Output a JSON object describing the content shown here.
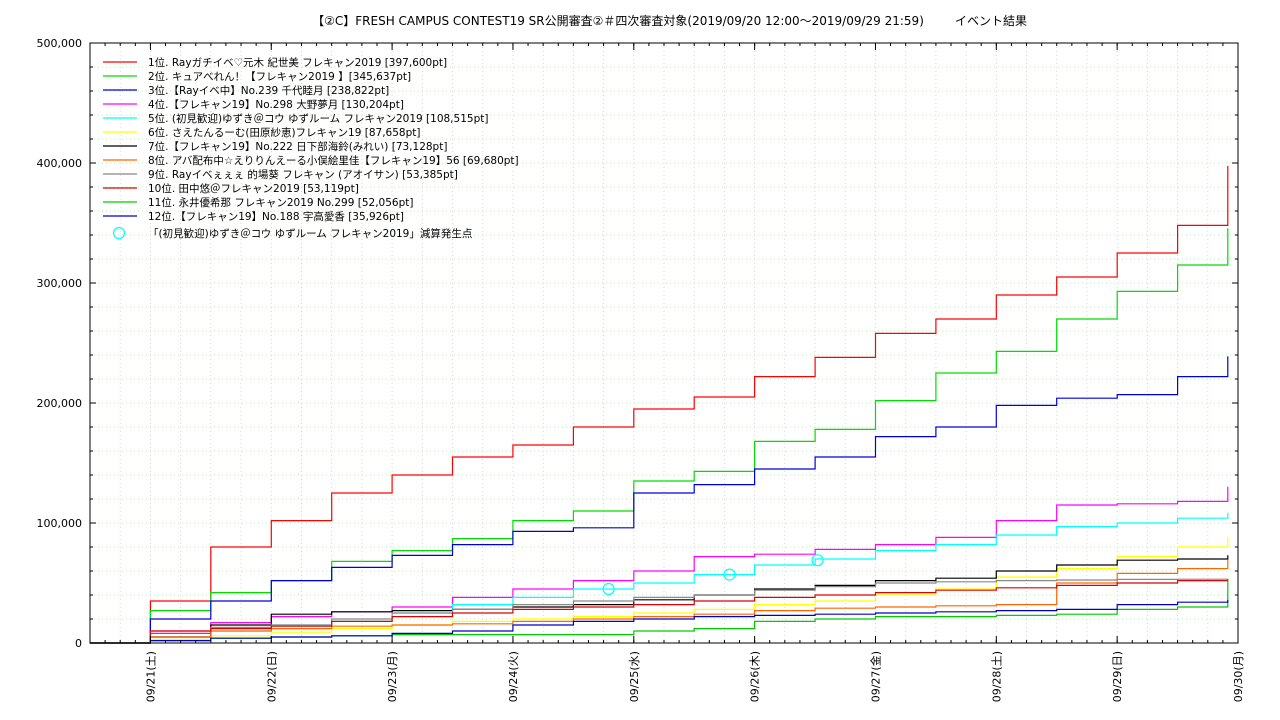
{
  "chart_data": {
    "type": "line",
    "title": "【②C】FRESH CAMPUS CONTEST19 SR公開審査②＃四次審査対象(2019/09/20 12:00〜2019/09/29 21:59)",
    "title_suffix": "イベント結果",
    "xlabel": "",
    "ylabel": "",
    "x_range": [
      "2019-09-20 12:00",
      "2019-09-30 00:00"
    ],
    "ylim": [
      0,
      500000
    ],
    "y_ticks": [
      0,
      100000,
      200000,
      300000,
      400000,
      500000
    ],
    "y_tick_labels": [
      "0",
      "100,000",
      "200,000",
      "300,000",
      "400,000",
      "500,000"
    ],
    "x_ticks": [
      "2019-09-21",
      "2019-09-22",
      "2019-09-23",
      "2019-09-24",
      "2019-09-25",
      "2019-09-26",
      "2019-09-27",
      "2019-09-28",
      "2019-09-29",
      "2019-09-30"
    ],
    "x_tick_labels": [
      "09/21(土)",
      "09/22(日)",
      "09/23(月)",
      "09/24(火)",
      "09/25(水)",
      "09/26(木)",
      "09/27(金)",
      "09/28(土)",
      "09/29(日)",
      "09/30(月)"
    ],
    "grid": true,
    "legend_position": "top-left",
    "series": [
      {
        "name": "1位. Rayガチイベ♡元木 紀世美 フレキャン2019 [397,600pt]",
        "color": "#ff0000",
        "x": [
          "2019-09-20 12:00",
          "2019-09-21 00:00",
          "2019-09-21 12:00",
          "2019-09-22 00:00",
          "2019-09-22 12:00",
          "2019-09-23 00:00",
          "2019-09-23 12:00",
          "2019-09-24 00:00",
          "2019-09-24 12:00",
          "2019-09-25 00:00",
          "2019-09-25 12:00",
          "2019-09-26 00:00",
          "2019-09-26 12:00",
          "2019-09-27 00:00",
          "2019-09-27 12:00",
          "2019-09-28 00:00",
          "2019-09-28 12:00",
          "2019-09-29 00:00",
          "2019-09-29 12:00",
          "2019-09-29 21:59"
        ],
        "y": [
          0,
          35000,
          80000,
          102000,
          125000,
          140000,
          155000,
          165000,
          180000,
          195000,
          205000,
          222000,
          238000,
          258000,
          270000,
          290000,
          305000,
          325000,
          348000,
          397600
        ]
      },
      {
        "name": "2位. キュアべれん！【フレキャン2019 】[345,637pt]",
        "color": "#00dd00",
        "x": [
          "2019-09-20 12:00",
          "2019-09-21 00:00",
          "2019-09-21 12:00",
          "2019-09-22 00:00",
          "2019-09-22 12:00",
          "2019-09-23 00:00",
          "2019-09-23 12:00",
          "2019-09-24 00:00",
          "2019-09-24 12:00",
          "2019-09-25 00:00",
          "2019-09-25 12:00",
          "2019-09-26 00:00",
          "2019-09-26 12:00",
          "2019-09-27 00:00",
          "2019-09-27 12:00",
          "2019-09-28 00:00",
          "2019-09-28 12:00",
          "2019-09-29 00:00",
          "2019-09-29 12:00",
          "2019-09-29 21:59"
        ],
        "y": [
          0,
          27000,
          42000,
          52000,
          68000,
          77000,
          87000,
          102000,
          110000,
          135000,
          143000,
          168000,
          178000,
          202000,
          225000,
          243000,
          270000,
          293000,
          315000,
          345637
        ]
      },
      {
        "name": "3位.【Rayイベ中】No.239 千代睦月 [238,822pt]",
        "color": "#0000dd",
        "x": [
          "2019-09-20 12:00",
          "2019-09-21 00:00",
          "2019-09-21 12:00",
          "2019-09-22 00:00",
          "2019-09-22 12:00",
          "2019-09-23 00:00",
          "2019-09-23 12:00",
          "2019-09-24 00:00",
          "2019-09-24 12:00",
          "2019-09-25 00:00",
          "2019-09-25 12:00",
          "2019-09-26 00:00",
          "2019-09-26 12:00",
          "2019-09-27 00:00",
          "2019-09-27 12:00",
          "2019-09-28 00:00",
          "2019-09-28 12:00",
          "2019-09-29 00:00",
          "2019-09-29 12:00",
          "2019-09-29 21:59"
        ],
        "y": [
          0,
          20000,
          35000,
          52000,
          63000,
          73000,
          82000,
          93000,
          96000,
          125000,
          132000,
          145000,
          155000,
          172000,
          180000,
          198000,
          204000,
          207000,
          222000,
          238822
        ]
      },
      {
        "name": "4位.【フレキャン19】No.298 大野夢月 [130,204pt]",
        "color": "#ff00ff",
        "x": [
          "2019-09-20 12:00",
          "2019-09-21 00:00",
          "2019-09-21 12:00",
          "2019-09-22 00:00",
          "2019-09-22 12:00",
          "2019-09-23 00:00",
          "2019-09-23 12:00",
          "2019-09-24 00:00",
          "2019-09-24 12:00",
          "2019-09-25 00:00",
          "2019-09-25 12:00",
          "2019-09-26 00:00",
          "2019-09-26 12:00",
          "2019-09-27 00:00",
          "2019-09-27 12:00",
          "2019-09-28 00:00",
          "2019-09-28 12:00",
          "2019-09-29 00:00",
          "2019-09-29 12:00",
          "2019-09-29 21:59"
        ],
        "y": [
          0,
          8000,
          17000,
          22000,
          26000,
          30000,
          38000,
          45000,
          52000,
          60000,
          72000,
          74000,
          78000,
          82000,
          88000,
          102000,
          115000,
          116000,
          118000,
          130204
        ]
      },
      {
        "name": "5位. (初見歓迎)ゆずき＠コウ ゆずルーム フレキャン2019 [108,515pt]",
        "color": "#00ffff",
        "x": [
          "2019-09-20 12:00",
          "2019-09-21 00:00",
          "2019-09-21 12:00",
          "2019-09-22 00:00",
          "2019-09-22 12:00",
          "2019-09-23 00:00",
          "2019-09-23 12:00",
          "2019-09-24 00:00",
          "2019-09-24 12:00",
          "2019-09-25 00:00",
          "2019-09-25 12:00",
          "2019-09-26 00:00",
          "2019-09-26 12:00",
          "2019-09-27 00:00",
          "2019-09-27 12:00",
          "2019-09-28 00:00",
          "2019-09-28 12:00",
          "2019-09-29 00:00",
          "2019-09-29 12:00",
          "2019-09-29 21:59"
        ],
        "y": [
          0,
          5000,
          10000,
          15000,
          18000,
          25000,
          32000,
          38000,
          45000,
          50000,
          57000,
          65000,
          70000,
          77000,
          82000,
          90000,
          97000,
          100000,
          104000,
          108515
        ]
      },
      {
        "name": "6位. さえたんるーむ(田原紗恵)フレキャン19 [87,658pt]",
        "color": "#ffff00",
        "x": [
          "2019-09-20 12:00",
          "2019-09-21 00:00",
          "2019-09-21 12:00",
          "2019-09-22 00:00",
          "2019-09-22 12:00",
          "2019-09-23 00:00",
          "2019-09-23 12:00",
          "2019-09-24 00:00",
          "2019-09-24 12:00",
          "2019-09-25 00:00",
          "2019-09-25 12:00",
          "2019-09-26 00:00",
          "2019-09-26 12:00",
          "2019-09-27 00:00",
          "2019-09-27 12:00",
          "2019-09-28 00:00",
          "2019-09-28 12:00",
          "2019-09-29 00:00",
          "2019-09-29 12:00",
          "2019-09-29 21:59"
        ],
        "y": [
          0,
          3000,
          6000,
          9000,
          12000,
          15000,
          18000,
          20000,
          22000,
          25000,
          28000,
          32000,
          35000,
          40000,
          45000,
          55000,
          62000,
          72000,
          80000,
          87658
        ]
      },
      {
        "name": "7位.【フレキャン19】No.222 日下部海鈴(みれい) [73,128pt]",
        "color": "#000000",
        "x": [
          "2019-09-20 12:00",
          "2019-09-21 00:00",
          "2019-09-21 12:00",
          "2019-09-22 00:00",
          "2019-09-22 12:00",
          "2019-09-23 00:00",
          "2019-09-23 12:00",
          "2019-09-24 00:00",
          "2019-09-24 12:00",
          "2019-09-25 00:00",
          "2019-09-25 12:00",
          "2019-09-26 00:00",
          "2019-09-26 12:00",
          "2019-09-27 00:00",
          "2019-09-27 12:00",
          "2019-09-28 00:00",
          "2019-09-28 12:00",
          "2019-09-29 00:00",
          "2019-09-29 12:00",
          "2019-09-29 21:59"
        ],
        "y": [
          0,
          5000,
          15000,
          24000,
          26000,
          27000,
          28000,
          30000,
          32000,
          36000,
          40000,
          45000,
          48000,
          52000,
          54000,
          60000,
          65000,
          69000,
          70000,
          73128
        ]
      },
      {
        "name": "8位. アバ配布中☆えりりんえーる小俣絵里佳【フレキャン19】56 [69,680pt]",
        "color": "#ff6600",
        "x": [
          "2019-09-20 12:00",
          "2019-09-21 00:00",
          "2019-09-21 12:00",
          "2019-09-22 00:00",
          "2019-09-22 12:00",
          "2019-09-23 00:00",
          "2019-09-23 12:00",
          "2019-09-24 00:00",
          "2019-09-24 12:00",
          "2019-09-25 00:00",
          "2019-09-25 12:00",
          "2019-09-26 00:00",
          "2019-09-26 12:00",
          "2019-09-27 00:00",
          "2019-09-27 12:00",
          "2019-09-28 00:00",
          "2019-09-28 12:00",
          "2019-09-29 00:00",
          "2019-09-29 12:00",
          "2019-09-29 21:59"
        ],
        "y": [
          0,
          5000,
          10000,
          12000,
          14000,
          15000,
          16000,
          18000,
          20000,
          22000,
          24000,
          27000,
          29000,
          30000,
          31000,
          32000,
          50000,
          58000,
          62000,
          69680
        ]
      },
      {
        "name": "9位. Rayイベぇぇぇ 的場葵 フレキャン (アオイサン) [53,385pt]",
        "color": "#888888",
        "x": [
          "2019-09-20 12:00",
          "2019-09-21 00:00",
          "2019-09-21 12:00",
          "2019-09-22 00:00",
          "2019-09-22 12:00",
          "2019-09-23 00:00",
          "2019-09-23 12:00",
          "2019-09-24 00:00",
          "2019-09-24 12:00",
          "2019-09-25 00:00",
          "2019-09-25 12:00",
          "2019-09-26 00:00",
          "2019-09-26 12:00",
          "2019-09-27 00:00",
          "2019-09-27 12:00",
          "2019-09-28 00:00",
          "2019-09-28 12:00",
          "2019-09-29 00:00",
          "2019-09-29 12:00",
          "2019-09-29 21:59"
        ],
        "y": [
          0,
          10000,
          13000,
          15000,
          20000,
          25000,
          28000,
          32000,
          35000,
          38000,
          40000,
          44000,
          47000,
          50000,
          51000,
          52000,
          52500,
          53000,
          53200,
          53385
        ]
      },
      {
        "name": "10位. 田中悠＠フレキャン2019 [53,119pt]",
        "color": "#dd0000",
        "x": [
          "2019-09-20 12:00",
          "2019-09-21 00:00",
          "2019-09-21 12:00",
          "2019-09-22 00:00",
          "2019-09-22 12:00",
          "2019-09-23 00:00",
          "2019-09-23 12:00",
          "2019-09-24 00:00",
          "2019-09-24 12:00",
          "2019-09-25 00:00",
          "2019-09-25 12:00",
          "2019-09-26 00:00",
          "2019-09-26 12:00",
          "2019-09-27 00:00",
          "2019-09-27 12:00",
          "2019-09-28 00:00",
          "2019-09-28 12:00",
          "2019-09-29 00:00",
          "2019-09-29 12:00",
          "2019-09-29 21:59"
        ],
        "y": [
          0,
          10000,
          12000,
          14000,
          18000,
          22000,
          25000,
          28000,
          30000,
          32000,
          35000,
          38000,
          40000,
          42000,
          44000,
          46000,
          48000,
          50000,
          52000,
          53119
        ]
      },
      {
        "name": "11位. 永井優希那 フレキャン2019 No.299 [52,056pt]",
        "color": "#00cc00",
        "x": [
          "2019-09-20 12:00",
          "2019-09-21 00:00",
          "2019-09-21 12:00",
          "2019-09-22 00:00",
          "2019-09-22 12:00",
          "2019-09-23 00:00",
          "2019-09-23 12:00",
          "2019-09-24 00:00",
          "2019-09-24 12:00",
          "2019-09-25 00:00",
          "2019-09-25 12:00",
          "2019-09-26 00:00",
          "2019-09-26 12:00",
          "2019-09-27 00:00",
          "2019-09-27 12:00",
          "2019-09-28 00:00",
          "2019-09-28 12:00",
          "2019-09-29 00:00",
          "2019-09-29 12:00",
          "2019-09-29 21:59"
        ],
        "y": [
          0,
          2000,
          4000,
          5000,
          6000,
          7000,
          7000,
          7000,
          7000,
          10000,
          12000,
          18000,
          20000,
          22000,
          22000,
          23000,
          24000,
          28000,
          30000,
          52056
        ]
      },
      {
        "name": "12位.【フレキャン19】No.188 宇高愛香 [35,926pt]",
        "color": "#0000cc",
        "x": [
          "2019-09-20 12:00",
          "2019-09-21 00:00",
          "2019-09-21 12:00",
          "2019-09-22 00:00",
          "2019-09-22 12:00",
          "2019-09-23 00:00",
          "2019-09-23 12:00",
          "2019-09-24 00:00",
          "2019-09-24 12:00",
          "2019-09-25 00:00",
          "2019-09-25 12:00",
          "2019-09-26 00:00",
          "2019-09-26 12:00",
          "2019-09-27 00:00",
          "2019-09-27 12:00",
          "2019-09-28 00:00",
          "2019-09-28 12:00",
          "2019-09-29 00:00",
          "2019-09-29 12:00",
          "2019-09-29 21:59"
        ],
        "y": [
          0,
          2000,
          4000,
          5000,
          6000,
          8000,
          10000,
          15000,
          18000,
          20000,
          22000,
          23000,
          24000,
          25000,
          26000,
          27000,
          28000,
          32000,
          34000,
          35926
        ]
      }
    ],
    "markers": {
      "name": "「(初見歓迎)ゆずき＠コウ ゆずルーム フレキャン2019」減算発生点",
      "color": "#00ffff",
      "points": [
        {
          "x": "2019-09-24 19:00",
          "y": 45000
        },
        {
          "x": "2019-09-25 19:00",
          "y": 57000
        },
        {
          "x": "2019-09-26 12:30",
          "y": 69000
        }
      ]
    }
  }
}
